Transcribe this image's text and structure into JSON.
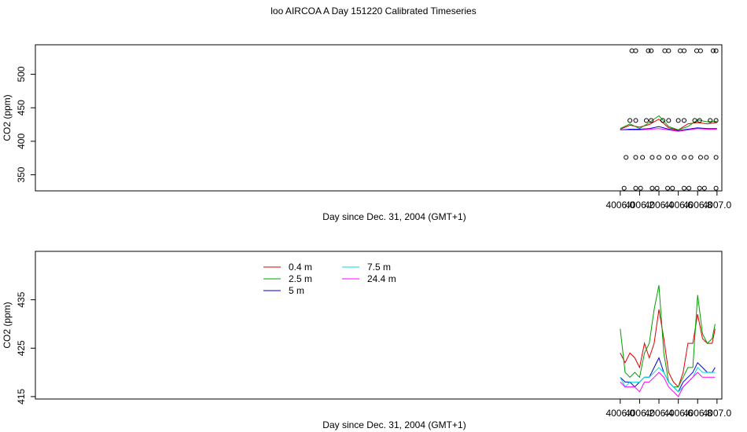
{
  "title": "loo AIRCOA A  Day 151220  Calibrated Timeseries",
  "chart_data": [
    {
      "type": "scatter",
      "xlabel": "Day since Dec. 31, 2004 (GMT+1)",
      "ylabel": "CO2 (ppm)",
      "xlim": [
        3999.955,
        4007.05
      ],
      "ylim": [
        326,
        544
      ],
      "xticks": [
        4006.0,
        4006.2,
        4006.4,
        4006.6,
        4006.8,
        4007.0
      ],
      "xtick_labels": [
        "4006.0",
        "4006.2",
        "4006.4",
        "4006.6",
        "4006.8",
        "4007.0"
      ],
      "yticks": [
        350,
        400,
        450,
        500
      ],
      "ytick_labels": [
        "350",
        "400",
        "450",
        "500"
      ],
      "grid": false,
      "x": [
        4006.0,
        4006.1,
        4006.2,
        4006.3,
        4006.4,
        4006.5,
        4006.6,
        4006.7,
        4006.8,
        4006.9,
        4007.0
      ],
      "series": [
        {
          "color": "#dd0000",
          "values": [
            418,
            424,
            421,
            425,
            433,
            420,
            417,
            426,
            428,
            426,
            428
          ]
        },
        {
          "color": "#00a000",
          "values": [
            419,
            426,
            419,
            428,
            438,
            422,
            417,
            422,
            432,
            429,
            430
          ]
        },
        {
          "color": "#0000cc",
          "values": [
            417,
            418,
            418,
            419,
            422,
            418,
            416,
            418,
            420,
            419,
            419
          ]
        },
        {
          "color": "#ff00ff",
          "values": [
            417,
            417,
            417,
            418,
            419,
            417,
            415,
            417,
            419,
            418,
            418
          ]
        }
      ],
      "outliers": {
        "color": "#000000",
        "x": [
          4006.12,
          4006.16,
          4006.29,
          4006.32,
          4006.46,
          4006.5,
          4006.62,
          4006.66,
          4006.79,
          4006.83,
          4006.96,
          4006.99,
          4006.1,
          4006.16,
          4006.27,
          4006.32,
          4006.44,
          4006.5,
          4006.6,
          4006.66,
          4006.77,
          4006.82,
          4006.93,
          4006.99,
          4006.06,
          4006.16,
          4006.23,
          4006.33,
          4006.4,
          4006.49,
          4006.56,
          4006.66,
          4006.73,
          4006.83,
          4006.89,
          4006.99,
          4006.04,
          4006.16,
          4006.21,
          4006.33,
          4006.38,
          4006.49,
          4006.54,
          4006.66,
          4006.71,
          4006.82,
          4006.87,
          4006.99
        ],
        "y": [
          535,
          535,
          535,
          535,
          535,
          535,
          535,
          535,
          535,
          535,
          535,
          535,
          431,
          431,
          431,
          431,
          431,
          431,
          431,
          431,
          431,
          431,
          431,
          431,
          376,
          376,
          376,
          376,
          376,
          376,
          376,
          376,
          376,
          376,
          376,
          376,
          330,
          330,
          330,
          330,
          330,
          330,
          330,
          330,
          330,
          330,
          330,
          330
        ]
      }
    },
    {
      "type": "line",
      "xlabel": "Day since Dec. 31, 2004 (GMT+1)",
      "ylabel": "CO2 (ppm)",
      "xlim": [
        3999.955,
        4007.05
      ],
      "ylim": [
        414.5,
        445
      ],
      "xticks": [
        4006.0,
        4006.2,
        4006.4,
        4006.6,
        4006.8,
        4007.0
      ],
      "xtick_labels": [
        "4006.0",
        "4006.2",
        "4006.4",
        "4006.6",
        "4006.8",
        "4007.0"
      ],
      "yticks": [
        415,
        425,
        435
      ],
      "ytick_labels": [
        "415",
        "425",
        "435"
      ],
      "grid": false,
      "legend_position": "top-left",
      "x": [
        4006.0,
        4006.05,
        4006.1,
        4006.15,
        4006.2,
        4006.25,
        4006.3,
        4006.35,
        4006.4,
        4006.45,
        4006.5,
        4006.55,
        4006.6,
        4006.65,
        4006.7,
        4006.75,
        4006.8,
        4006.85,
        4006.9,
        4006.95,
        4006.98
      ],
      "series": [
        {
          "name": "0.4 m",
          "color": "#dd0000",
          "values": [
            424,
            422,
            424,
            423,
            421,
            426,
            423,
            426,
            433,
            427,
            420,
            418,
            417,
            420,
            426,
            426,
            432,
            427,
            426,
            426,
            429
          ]
        },
        {
          "name": "2.5 m",
          "color": "#00a000",
          "values": [
            429,
            420,
            419,
            420,
            419,
            424,
            426,
            433,
            438,
            424,
            418,
            417,
            417,
            419,
            421,
            421,
            436,
            428,
            426,
            427,
            430
          ]
        },
        {
          "name": "5 m",
          "color": "#0000cc",
          "values": [
            419,
            418,
            418,
            417,
            418,
            419,
            419,
            421,
            423,
            420,
            418,
            417,
            416,
            418,
            419,
            420,
            422,
            421,
            420,
            420,
            421
          ]
        },
        {
          "name": "7.5 m",
          "color": "#00dddd",
          "values": [
            419,
            417,
            418,
            418,
            418,
            419,
            419,
            420,
            421,
            420,
            418,
            417,
            416,
            417,
            418,
            419,
            421,
            420,
            420,
            420,
            420
          ]
        },
        {
          "name": "24.4 m",
          "color": "#ff00ff",
          "values": [
            418,
            417,
            417,
            417,
            416,
            418,
            418,
            419,
            420,
            419,
            417,
            416,
            415,
            417,
            418,
            419,
            420,
            419,
            419,
            419,
            419
          ]
        }
      ]
    }
  ]
}
